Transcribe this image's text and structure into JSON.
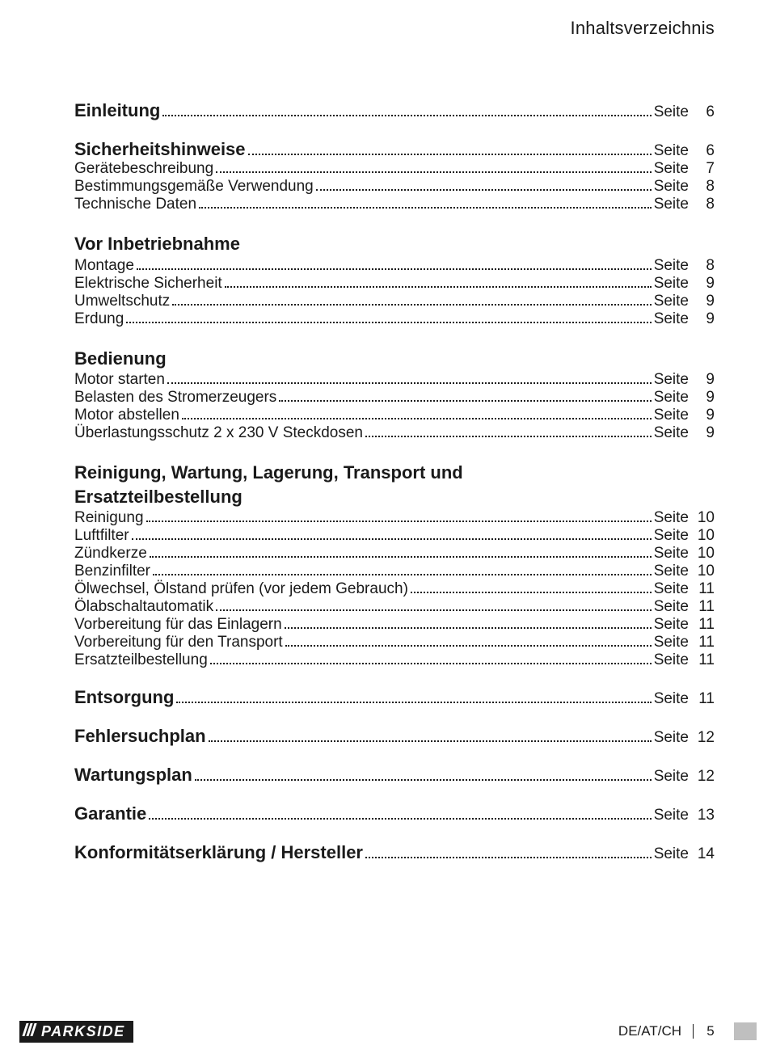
{
  "page": {
    "header": "Inhaltsverzeichnis",
    "page_word": "Seite",
    "footer": {
      "brand": "PARKSIDE",
      "region": "DE/AT/CH",
      "page_number": "5"
    }
  },
  "toc": [
    {
      "type": "heading_linked",
      "label": "Einleitung",
      "page": "6"
    },
    {
      "type": "heading_linked",
      "label": "Sicherheitshinweise",
      "page": "6"
    },
    {
      "type": "entry",
      "label": "Gerätebeschreibung",
      "page": "7"
    },
    {
      "type": "entry",
      "label": "Bestimmungsgemäße Verwendung",
      "page": "8"
    },
    {
      "type": "entry",
      "label": "Technische Daten",
      "page": "8"
    },
    {
      "type": "heading_plain",
      "label": "Vor Inbetriebnahme"
    },
    {
      "type": "entry",
      "label": "Montage",
      "page": "8"
    },
    {
      "type": "entry",
      "label": "Elektrische Sicherheit",
      "page": "9"
    },
    {
      "type": "entry",
      "label": "Umweltschutz",
      "page": "9"
    },
    {
      "type": "entry",
      "label": "Erdung",
      "page": "9"
    },
    {
      "type": "heading_plain",
      "label": "Bedienung"
    },
    {
      "type": "entry",
      "label": "Motor starten",
      "page": "9"
    },
    {
      "type": "entry",
      "label": "Belasten des Stromerzeugers",
      "page": "9"
    },
    {
      "type": "entry",
      "label": "Motor abstellen",
      "page": "9"
    },
    {
      "type": "entry",
      "label": "Überlastungsschutz 2 x 230 V Steckdosen",
      "page": "9"
    },
    {
      "type": "heading_multiline",
      "line1": "Reinigung, Wartung, Lagerung, Transport und",
      "line2": "Ersatzteilbestellung"
    },
    {
      "type": "entry",
      "label": "Reinigung",
      "page": "10"
    },
    {
      "type": "entry",
      "label": "Luftfilter",
      "page": "10"
    },
    {
      "type": "entry",
      "label": "Zündkerze",
      "page": "10"
    },
    {
      "type": "entry",
      "label": "Benzinfilter",
      "page": "10"
    },
    {
      "type": "entry",
      "label": "Ölwechsel, Ölstand prüfen (vor jedem Gebrauch)",
      "page": "11"
    },
    {
      "type": "entry",
      "label": "Ölabschaltautomatik",
      "page": "11"
    },
    {
      "type": "entry",
      "label": "Vorbereitung für das Einlagern",
      "page": "11"
    },
    {
      "type": "entry",
      "label": "Vorbereitung für den Transport",
      "page": "11"
    },
    {
      "type": "entry",
      "label": "Ersatzteilbestellung",
      "page": "11"
    },
    {
      "type": "heading_linked",
      "label": "Entsorgung",
      "page": "11"
    },
    {
      "type": "heading_linked",
      "label": "Fehlersuchplan",
      "page": "12"
    },
    {
      "type": "heading_linked",
      "label": "Wartungsplan",
      "page": "12"
    },
    {
      "type": "heading_linked",
      "label": "Garantie",
      "page": "13"
    },
    {
      "type": "heading_linked",
      "label": "Konformitätserklärung / Hersteller",
      "page": "14"
    }
  ]
}
